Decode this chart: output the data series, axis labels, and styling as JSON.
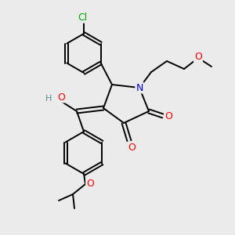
{
  "bg_color": "#ebebeb",
  "atom_colors": {
    "N": "#0000ee",
    "O": "#ff0000",
    "Cl": "#00aa00",
    "H_gray": "#5a8a8a"
  },
  "figsize": [
    3.0,
    3.0
  ],
  "dpi": 100
}
